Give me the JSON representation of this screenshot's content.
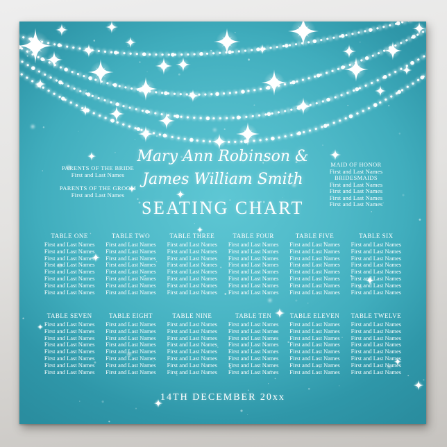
{
  "poster": {
    "couple_name_line1": "Mary Ann Robinson &",
    "couple_name_line2": "James William Smith",
    "heading": "SEATING CHART",
    "event_date": "14TH DECEMBER 20xx",
    "left_roles": [
      {
        "role": "PARENTS OF THE BRIDE",
        "names": [
          "First and Last Names"
        ]
      },
      {
        "role": "PARENTS OF THE GROOM",
        "names": [
          "First and Last Names"
        ]
      }
    ],
    "right_roles": [
      {
        "role": "MAID OF HONOR",
        "names": [
          "First and Last Names"
        ]
      },
      {
        "role": "BRIDESMAIDS",
        "names": [
          "First and Last Names",
          "First and Last Names",
          "First and Last Names",
          "First and Last Names"
        ]
      }
    ],
    "tables": [
      {
        "name": "TABLE ONE",
        "guests": [
          "First and Last Names",
          "First and Last Names",
          "First and Last Names",
          "First and Last Names",
          "First and Last Names",
          "First and Last Names",
          "First and Last Names",
          "First and Last Names"
        ]
      },
      {
        "name": "TABLE TWO",
        "guests": [
          "First and Last Names",
          "First and Last Names",
          "First and Last Names",
          "First and Last Names",
          "First and Last Names",
          "First and Last Names",
          "First and Last Names",
          "First and Last Names"
        ]
      },
      {
        "name": "TABLE THREE",
        "guests": [
          "First and Last Names",
          "First and Last Names",
          "First and Last Names",
          "First and Last Names",
          "First and Last Names",
          "First and Last Names",
          "First and Last Names",
          "First and Last Names"
        ]
      },
      {
        "name": "TABLE FOUR",
        "guests": [
          "First and Last Names",
          "First and Last Names",
          "First and Last Names",
          "First and Last Names",
          "First and Last Names",
          "First and Last Names",
          "First and Last Names",
          "First and Last Names"
        ]
      },
      {
        "name": "TABLE FIVE",
        "guests": [
          "First and Last Names",
          "First and Last Names",
          "First and Last Names",
          "First and Last Names",
          "First and Last Names",
          "First and Last Names",
          "First and Last Names",
          "First and Last Names"
        ]
      },
      {
        "name": "TABLE SIX",
        "guests": [
          "First and Last Names",
          "First and Last Names",
          "First and Last Names",
          "First and Last Names",
          "First and Last Names",
          "First and Last Names",
          "First and Last Names",
          "First and Last Names"
        ]
      },
      {
        "name": "TABLE SEVEN",
        "guests": [
          "First and Last Names",
          "First and Last Names",
          "First and Last Names",
          "First and Last Names",
          "First and Last Names",
          "First and Last Names",
          "First and Last Names",
          "First and Last Names"
        ]
      },
      {
        "name": "TABLE EIGHT",
        "guests": [
          "First and Last Names",
          "First and Last Names",
          "First and Last Names",
          "First and Last Names",
          "First and Last Names",
          "First and Last Names",
          "First and Last Names",
          "First and Last Names"
        ]
      },
      {
        "name": "TABLE NINE",
        "guests": [
          "First and Last Names",
          "First and Last Names",
          "First and Last Names",
          "First and Last Names",
          "First and Last Names",
          "First and Last Names",
          "First and Last Names",
          "First and Last Names"
        ]
      },
      {
        "name": "TABLE TEN",
        "guests": [
          "First and Last Names",
          "First and Last Names",
          "First and Last Names",
          "First and Last Names",
          "First and Last Names",
          "First and Last Names",
          "First and Last Names",
          "First and Last Names"
        ]
      },
      {
        "name": "TABLE ELEVEN",
        "guests": [
          "First and Last Names",
          "First and Last Names",
          "First and Last Names",
          "First and Last Names",
          "First and Last Names",
          "First and Last Names",
          "First and Last Names",
          "First and Last Names"
        ]
      },
      {
        "name": "TABLE TWELVE",
        "guests": [
          "First and Last Names",
          "First and Last Names",
          "First and Last Names",
          "First and Last Names",
          "First and Last Names",
          "First and Last Names",
          "First and Last Names",
          "First and Last Names"
        ]
      }
    ]
  },
  "colors": {
    "poster_center": "#5ec7d4",
    "poster_mid": "#40adbd",
    "poster_edge": "#2a8d9f",
    "frame_top": "#eeeeee",
    "frame_bottom": "#c6c3bf",
    "text": "#ffffff"
  }
}
